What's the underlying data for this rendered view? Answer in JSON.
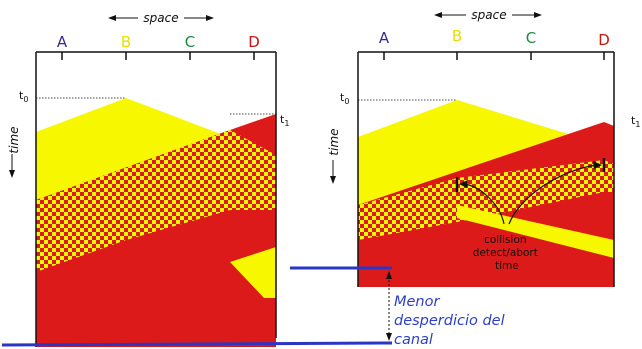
{
  "left_panel": {
    "space_label": "space",
    "time_label": "time",
    "t0": "t",
    "t0_sub": "0",
    "t1": "t",
    "t1_sub": "1",
    "stations": [
      {
        "label": "A",
        "color": "#3a2a8a"
      },
      {
        "label": "B",
        "color": "#e8e000"
      },
      {
        "label": "C",
        "color": "#1c8a3a"
      },
      {
        "label": "D",
        "color": "#c81414"
      }
    ]
  },
  "right_panel": {
    "space_label": "space",
    "time_label": "time",
    "t0": "t",
    "t0_sub": "0",
    "t1": "t",
    "t1_sub": "1",
    "stations": [
      {
        "label": "A",
        "color": "#3a2a8a"
      },
      {
        "label": "B",
        "color": "#e8e000"
      },
      {
        "label": "C",
        "color": "#1c8a3a"
      },
      {
        "label": "D",
        "color": "#c81414"
      }
    ],
    "annotation": [
      "collision",
      "detect/abort",
      "time"
    ]
  },
  "caption": {
    "lines": [
      "Menor",
      "desperdicio del",
      "canal"
    ],
    "color": "#2d3fc6"
  },
  "colors": {
    "yellow": "#f7f700",
    "red": "#dd1a1a",
    "blue_line": "#2a36c4"
  }
}
